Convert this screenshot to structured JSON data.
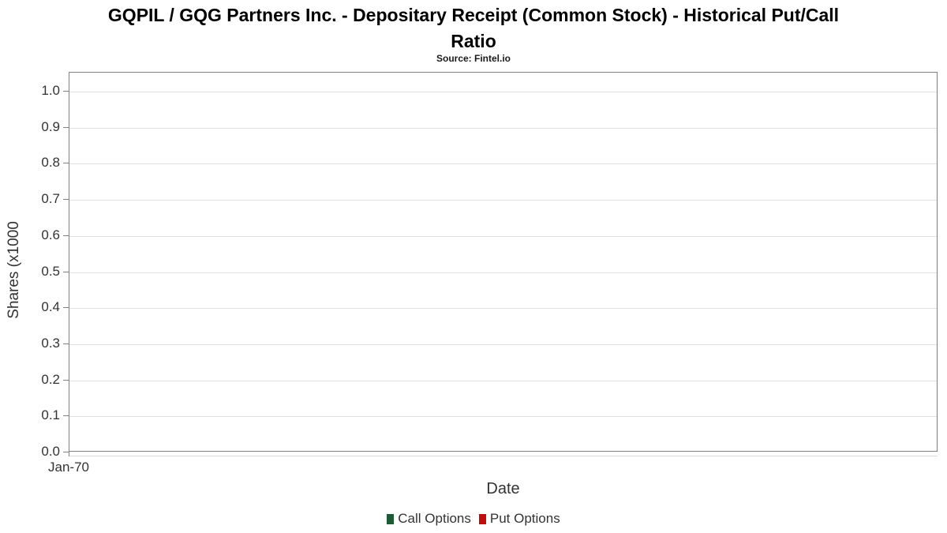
{
  "header": {
    "title": "GQPIL / GQG Partners Inc. - Depositary Receipt (Common Stock) - Historical Put/Call Ratio",
    "title_lines": [
      "GQPIL / GQG Partners Inc. - Depositary Receipt (Common Stock) - Historical Put/Call",
      "Ratio"
    ],
    "subtitle": "Source: Fintel.io"
  },
  "chart_data": {
    "type": "line",
    "title": "GQPIL / GQG Partners Inc. - Depositary Receipt (Common Stock) - Historical Put/Call Ratio",
    "subtitle": "Source: Fintel.io",
    "xlabel": "Date",
    "ylabel": "Shares (x1000",
    "x_tick_labels": [
      "Jan-70"
    ],
    "y_tick_labels": [
      "0.0",
      "0.1",
      "0.2",
      "0.3",
      "0.4",
      "0.5",
      "0.6",
      "0.7",
      "0.8",
      "0.9",
      "1.0"
    ],
    "ylim": [
      0.0,
      1.05
    ],
    "grid": "horizontal",
    "legend_position": "bottom",
    "series": [
      {
        "name": "Call Options",
        "color": "#1c5b33",
        "values": []
      },
      {
        "name": "Put Options",
        "color": "#c20d0d",
        "values": []
      }
    ]
  },
  "colors": {
    "plot_border": "#808080",
    "gridline": "#e0e0e0",
    "axis_line": "#d9d9d9",
    "tick": "#808080",
    "text": "#333333",
    "title": "#000000"
  }
}
